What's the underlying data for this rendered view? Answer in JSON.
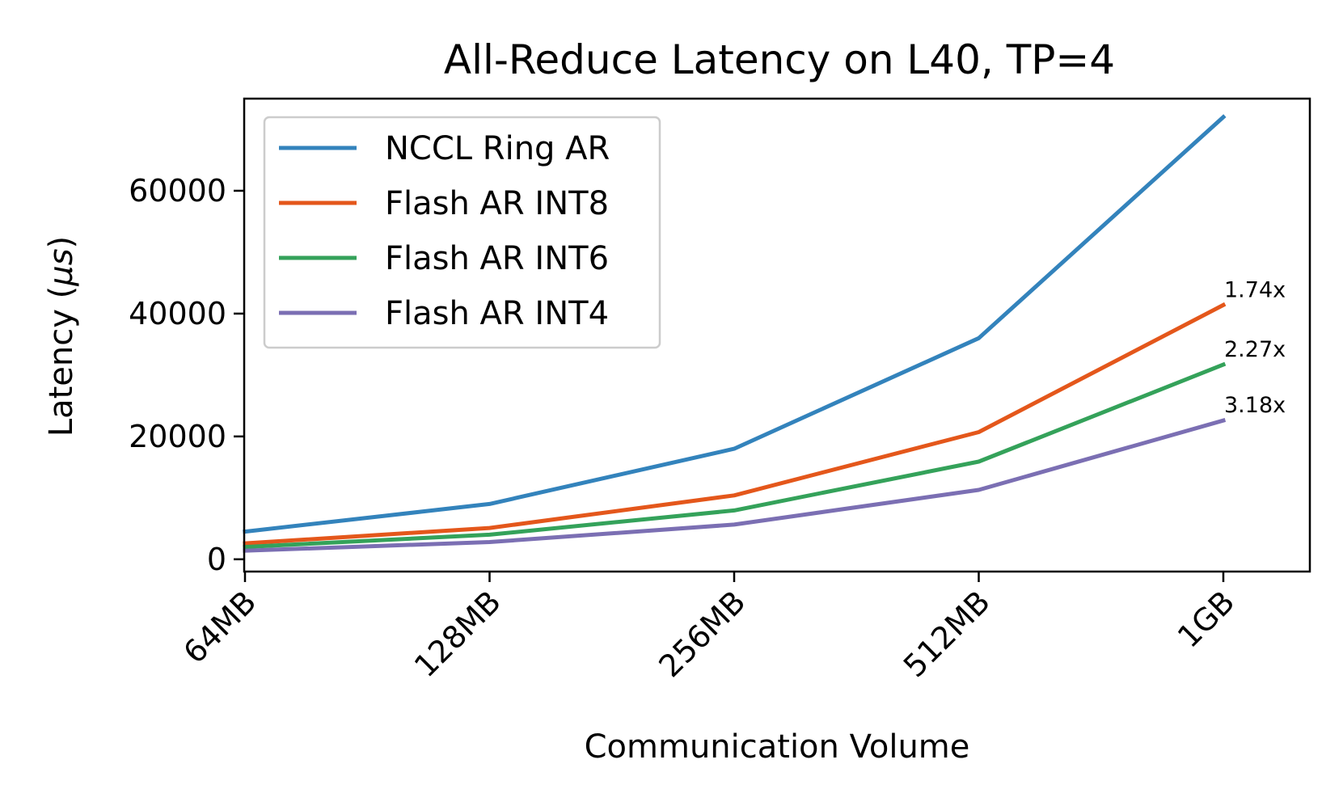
{
  "chart_data": {
    "type": "line",
    "title": "All-Reduce Latency on L40, TP=4",
    "xlabel": "Communication Volume",
    "ylabel_prefix": "Latency (",
    "ylabel_mu": "μ",
    "ylabel_s": "s",
    "ylabel_suffix": ")",
    "categories": [
      "64MB",
      "128MB",
      "256MB",
      "512MB",
      "1GB"
    ],
    "ylim": [
      -2000,
      75000
    ],
    "yticks": [
      0,
      20000,
      40000,
      60000
    ],
    "ytick_labels": [
      "0",
      "20000",
      "40000",
      "60000"
    ],
    "grid": false,
    "legend_position": "upper-left",
    "series": [
      {
        "name": "NCCL Ring AR",
        "color": "#3383bc",
        "values": [
          4500,
          9000,
          18000,
          36000,
          72000
        ]
      },
      {
        "name": "Flash AR INT8",
        "color": "#e4571b",
        "values": [
          2600,
          5100,
          10400,
          20700,
          41400
        ]
      },
      {
        "name": "Flash AR INT6",
        "color": "#34a25a",
        "values": [
          2000,
          4000,
          7950,
          15900,
          31700
        ]
      },
      {
        "name": "Flash AR INT4",
        "color": "#7b6fb3",
        "values": [
          1400,
          2800,
          5650,
          11300,
          22600
        ]
      }
    ],
    "annotations": [
      {
        "series": "Flash AR INT8",
        "text": "1.74x"
      },
      {
        "series": "Flash AR INT6",
        "text": "2.27x"
      },
      {
        "series": "Flash AR INT4",
        "text": "3.18x"
      }
    ]
  }
}
